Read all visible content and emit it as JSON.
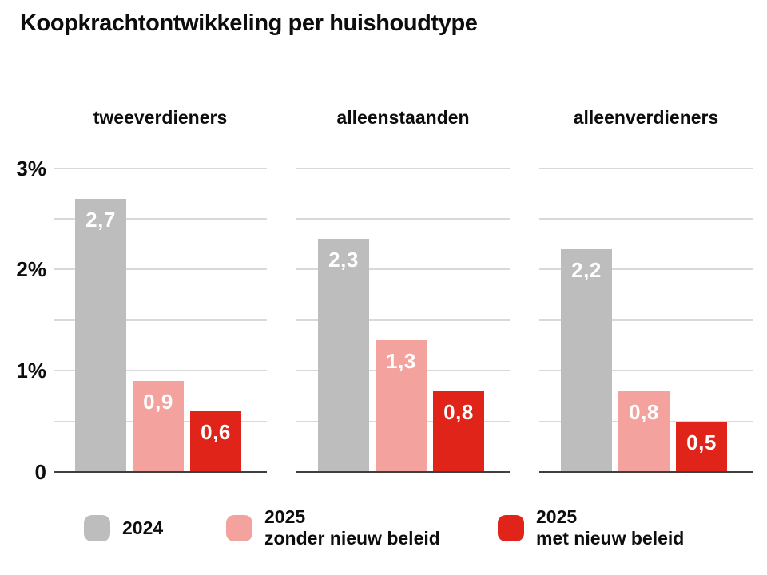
{
  "title": "Koopkrachtontwikkeling per huishoudtype",
  "colors": {
    "bar_2024": "#bdbdbd",
    "bar_2025_zonder": "#f3a29d",
    "bar_2025_met": "#e1241a",
    "gridline": "#d9d9d9",
    "baseline": "#3f3f3f",
    "text": "#0d0d0d",
    "bar_label_text": "#ffffff"
  },
  "chart_data": {
    "type": "bar",
    "title": "Koopkrachtontwikkeling per huishoudtype",
    "categories": [
      "tweeverdieners",
      "alleenstaanden",
      "alleenverdieners"
    ],
    "series": [
      {
        "name": "2024",
        "color_key": "bar_2024",
        "values": [
          2.7,
          2.3,
          2.2
        ],
        "value_labels": [
          "2,7",
          "2,3",
          "2,2"
        ]
      },
      {
        "name": "2025 zonder nieuw beleid",
        "color_key": "bar_2025_zonder",
        "values": [
          0.9,
          1.3,
          0.8
        ],
        "value_labels": [
          "0,9",
          "1,3",
          "0,8"
        ]
      },
      {
        "name": "2025 met nieuw beleid",
        "color_key": "bar_2025_met",
        "values": [
          0.6,
          0.8,
          0.5
        ],
        "value_labels": [
          "0,6",
          "0,8",
          "0,5"
        ]
      }
    ],
    "y_axis": {
      "unit": "%",
      "range": [
        0,
        3
      ],
      "gridline_step": 0.5,
      "ticks": [
        {
          "value": 3,
          "label": "3%"
        },
        {
          "value": 2,
          "label": "2%"
        },
        {
          "value": 1,
          "label": "1%"
        },
        {
          "value": 0,
          "label": "0"
        }
      ]
    },
    "grid": true,
    "legend_position": "bottom",
    "legend": [
      {
        "line1": "2024",
        "line2": "",
        "color_key": "bar_2024"
      },
      {
        "line1": "2025",
        "line2": "zonder nieuw beleid",
        "color_key": "bar_2025_zonder"
      },
      {
        "line1": "2025",
        "line2": "met nieuw beleid",
        "color_key": "bar_2025_met"
      }
    ]
  }
}
